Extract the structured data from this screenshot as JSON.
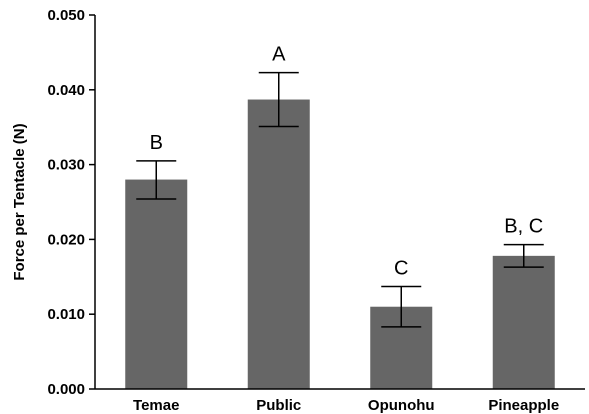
{
  "chart_data": {
    "type": "bar",
    "title": "",
    "xlabel": "",
    "ylabel": "Force per Tentacle (N)",
    "categories": [
      "Temae",
      "Public",
      "Opunohu",
      "Pineapple"
    ],
    "values": [
      0.028,
      0.0387,
      0.011,
      0.0178
    ],
    "error_low": [
      0.0254,
      0.0351,
      0.0083,
      0.0163
    ],
    "error_high": [
      0.0305,
      0.0423,
      0.0137,
      0.0193
    ],
    "annotations": [
      "B",
      "A",
      "C",
      "B, C"
    ],
    "ylim": [
      0,
      0.05
    ],
    "yticks": [
      "0.000",
      "0.010",
      "0.020",
      "0.030",
      "0.040",
      "0.050"
    ],
    "grid": false,
    "legend": "none",
    "colors": {
      "bar": "#666666",
      "axis": "#000000",
      "error_bar": "#000000"
    }
  }
}
